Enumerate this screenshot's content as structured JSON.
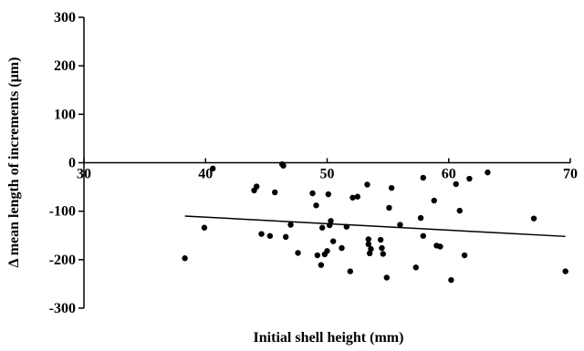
{
  "chart_data": {
    "type": "scatter",
    "title": "",
    "xlabel": "Initial shell height (mm)",
    "ylabel": "Δ mean length of increments (µm)",
    "xlim": [
      30,
      70
    ],
    "ylim": [
      -300,
      300
    ],
    "x_ticks": [
      30,
      40,
      50,
      60,
      70
    ],
    "y_ticks": [
      300,
      200,
      100,
      0,
      -100,
      -200,
      -300
    ],
    "x_tick_labels": [
      "30",
      "40",
      "50",
      "60",
      "70"
    ],
    "y_tick_labels": [
      "300",
      "200",
      "100",
      "0",
      "-100",
      "-200",
      "-300"
    ],
    "grid": false,
    "legend": "none",
    "x_axis_crosses_y_at": 0,
    "colors": {
      "points": "#000000",
      "axes": "#000000",
      "trend": "#000000"
    },
    "points": [
      [
        38.3,
        -197
      ],
      [
        39.9,
        -134
      ],
      [
        40.6,
        -12
      ],
      [
        44.0,
        -57
      ],
      [
        44.2,
        -49
      ],
      [
        44.6,
        -147
      ],
      [
        45.3,
        -151
      ],
      [
        45.7,
        -61
      ],
      [
        46.3,
        -3
      ],
      [
        46.4,
        -6
      ],
      [
        46.6,
        -153
      ],
      [
        47.0,
        -128
      ],
      [
        47.6,
        -186
      ],
      [
        48.8,
        -63
      ],
      [
        49.1,
        -88
      ],
      [
        49.2,
        -191
      ],
      [
        49.5,
        -211
      ],
      [
        49.6,
        -134
      ],
      [
        49.8,
        -189
      ],
      [
        50.0,
        -182
      ],
      [
        50.1,
        -65
      ],
      [
        50.2,
        -129
      ],
      [
        50.3,
        -120
      ],
      [
        50.5,
        -162
      ],
      [
        51.2,
        -176
      ],
      [
        51.6,
        -132
      ],
      [
        51.9,
        -224
      ],
      [
        52.1,
        -72
      ],
      [
        52.5,
        -70
      ],
      [
        53.3,
        -45
      ],
      [
        53.4,
        -158
      ],
      [
        53.4,
        -168
      ],
      [
        53.5,
        -187
      ],
      [
        53.6,
        -178
      ],
      [
        54.4,
        -159
      ],
      [
        54.5,
        -176
      ],
      [
        54.6,
        -188
      ],
      [
        54.9,
        -237
      ],
      [
        55.1,
        -93
      ],
      [
        55.3,
        -52
      ],
      [
        56.0,
        -128
      ],
      [
        57.3,
        -216
      ],
      [
        57.7,
        -114
      ],
      [
        57.9,
        -151
      ],
      [
        57.9,
        -31
      ],
      [
        58.8,
        -78
      ],
      [
        59.0,
        -171
      ],
      [
        59.3,
        -173
      ],
      [
        60.2,
        -242
      ],
      [
        60.6,
        -44
      ],
      [
        60.9,
        -99
      ],
      [
        61.3,
        -191
      ],
      [
        61.7,
        -33
      ],
      [
        63.2,
        -20
      ],
      [
        67.0,
        -115
      ],
      [
        69.6,
        -224
      ]
    ],
    "trendline": {
      "x": [
        38.3,
        69.6
      ],
      "y": [
        -110,
        -152
      ]
    }
  }
}
